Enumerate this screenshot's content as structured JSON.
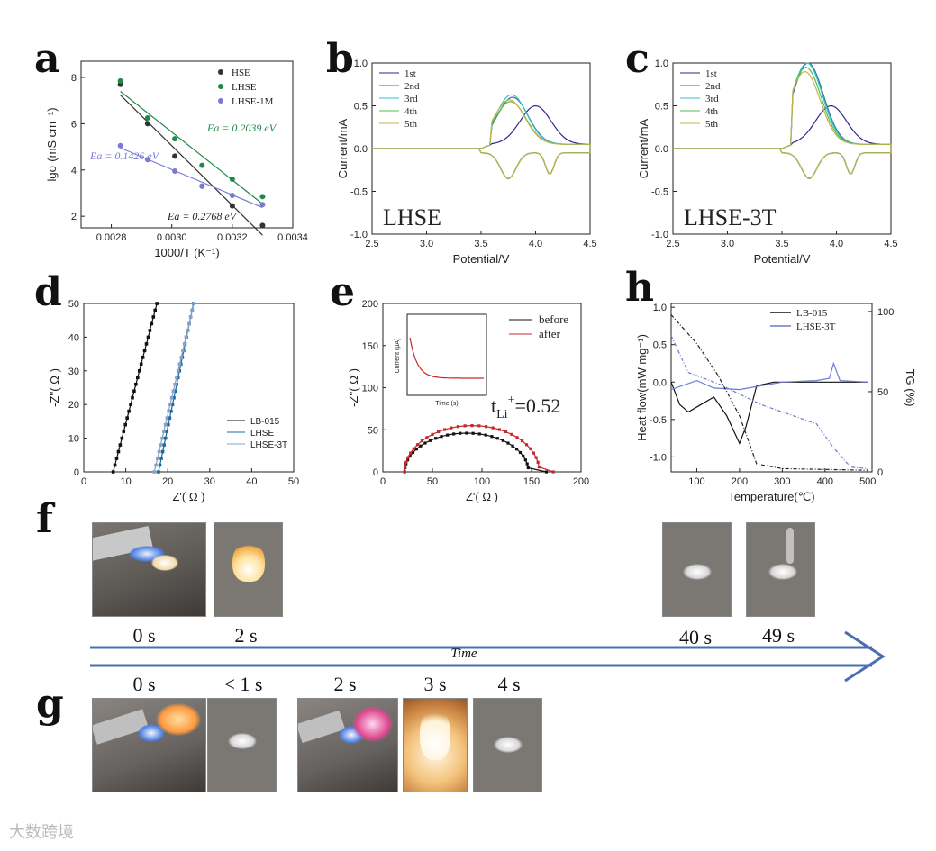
{
  "panels": {
    "a": {
      "label": "a"
    },
    "b": {
      "label": "b"
    },
    "c": {
      "label": "c"
    },
    "d": {
      "label": "d"
    },
    "e": {
      "label": "e"
    },
    "f": {
      "label": "f"
    },
    "g": {
      "label": "g"
    },
    "h": {
      "label": "h"
    }
  },
  "chart_data": [
    {
      "id": "a",
      "type": "scatter",
      "xlabel": "1000/T (K⁻¹)",
      "ylabel": "lgσ (mS cm⁻¹)",
      "xlim": [
        0.0027,
        0.0034
      ],
      "ylim": [
        1.5,
        8.7
      ],
      "xticks": [
        "0.0028",
        "0.0030",
        "0.0032",
        "0.0034"
      ],
      "yticks": [
        "2",
        "4",
        "6",
        "8"
      ],
      "series": [
        {
          "name": "HSE",
          "color": "#333333",
          "x": [
            0.00283,
            0.00292,
            0.00301,
            0.0031,
            0.0032,
            0.0033
          ],
          "y": [
            7.7,
            6.0,
            4.6,
            3.3,
            2.45,
            1.6
          ]
        },
        {
          "name": "LHSE",
          "color": "#1e8a4a",
          "x": [
            0.00283,
            0.00292,
            0.00301,
            0.0031,
            0.0032,
            0.0033
          ],
          "y": [
            7.85,
            6.25,
            5.35,
            4.2,
            3.6,
            2.85
          ]
        },
        {
          "name": "LHSE-1M",
          "color": "#7a7ad6",
          "x": [
            0.00283,
            0.00292,
            0.00301,
            0.0031,
            0.0032,
            0.0033
          ],
          "y": [
            5.05,
            4.45,
            3.95,
            3.3,
            2.9,
            2.5
          ]
        }
      ],
      "annotations": [
        "Ea = 0.2039 eV",
        "Ea = 0.1426 eV",
        "Ea = 0.2768 eV"
      ]
    },
    {
      "id": "b",
      "type": "line",
      "title": "LHSE",
      "xlabel": "Potential/V",
      "ylabel": "Current/mA",
      "xlim": [
        2.5,
        4.5
      ],
      "ylim": [
        -1.0,
        1.0
      ],
      "xticks": [
        "2.5",
        "3.0",
        "3.5",
        "4.0",
        "4.5"
      ],
      "yticks": [
        "-1.0",
        "-0.5",
        "0.0",
        "0.5",
        "1.0"
      ],
      "legend": [
        "1st",
        "2nd",
        "3rd",
        "4th",
        "5th"
      ]
    },
    {
      "id": "c",
      "type": "line",
      "title": "LHSE-3T",
      "xlabel": "Potential/V",
      "ylabel": "Current/mA",
      "xlim": [
        2.5,
        4.5
      ],
      "ylim": [
        -1.0,
        1.0
      ],
      "xticks": [
        "2.5",
        "3.0",
        "3.5",
        "4.0",
        "4.5"
      ],
      "yticks": [
        "-1.0",
        "-0.5",
        "0.0",
        "0.5",
        "1.0"
      ],
      "legend": [
        "1st",
        "2nd",
        "3rd",
        "4th",
        "5th"
      ]
    },
    {
      "id": "d",
      "type": "scatter",
      "xlabel": "Z'( Ω )",
      "ylabel": "-Z''( Ω )",
      "xlim": [
        0,
        50
      ],
      "ylim": [
        0,
        50
      ],
      "xticks": [
        "0",
        "10",
        "20",
        "30",
        "40",
        "50"
      ],
      "yticks": [
        "0",
        "10",
        "20",
        "30",
        "40",
        "50"
      ],
      "legend": [
        "LB-015",
        "LHSE",
        "LHSE-3T"
      ]
    },
    {
      "id": "e",
      "type": "scatter",
      "xlabel": "Z'( Ω )",
      "ylabel": "-Z''( Ω )",
      "xlim": [
        0,
        200
      ],
      "ylim": [
        0,
        200
      ],
      "xticks": [
        "0",
        "50",
        "100",
        "150",
        "200"
      ],
      "yticks": [
        "0",
        "50",
        "100",
        "150",
        "200"
      ],
      "legend": [
        "before",
        "after"
      ],
      "annotation_main": "t",
      "annotation_sub": "Li",
      "annotation_sup": "+",
      "annotation_value": "=0.52",
      "inset": {
        "xlabel": "Time (s)",
        "ylabel": "Current (μA)"
      }
    },
    {
      "id": "h",
      "type": "line",
      "xlabel": "Temperature(℃)",
      "ylabel": "Heat flow(mW mg⁻¹)",
      "y2label": "TG (%)",
      "xlim": [
        40,
        510
      ],
      "ylim": [
        -1.2,
        1.05
      ],
      "xticks": [
        "100",
        "200",
        "300",
        "400",
        "500"
      ],
      "yticks": [
        "-1.0",
        "-0.5",
        "0.0",
        "0.5",
        "1.0"
      ],
      "y2ticks": [
        "0",
        "50",
        "100"
      ],
      "legend": [
        "LB-015",
        "LHSE-3T"
      ]
    }
  ],
  "timeline": {
    "axis_label": "Time",
    "f_times": [
      "0 s",
      "2 s",
      "40 s",
      "49 s"
    ],
    "g_times": [
      "0 s",
      "< 1 s",
      "2 s",
      "3 s",
      "4 s"
    ]
  },
  "watermark": "大数跨境"
}
